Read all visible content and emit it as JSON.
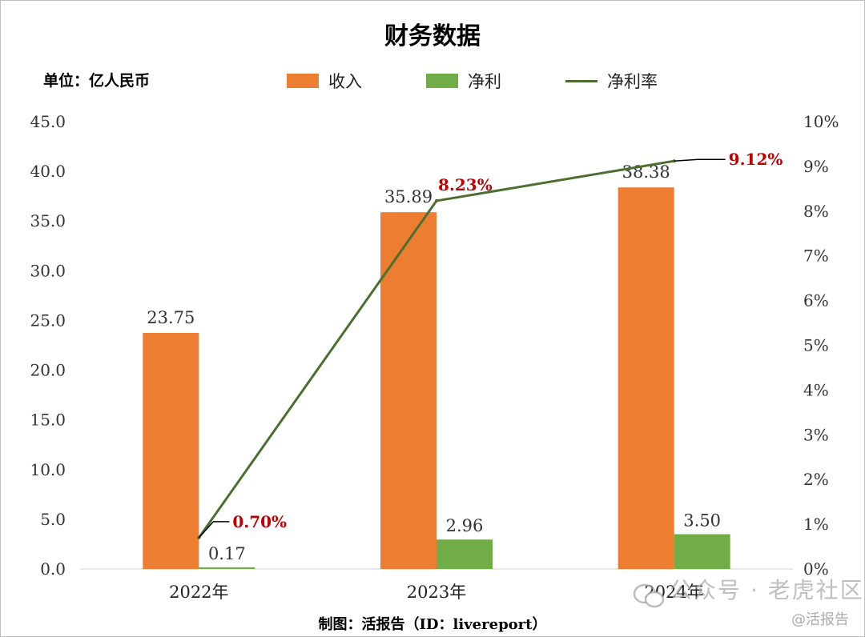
{
  "colors": {
    "revenue": "#ed7d31",
    "profit": "#70ad47",
    "margin_line": "#4a6f2e",
    "margin_label": "#c00000"
  },
  "header": {
    "title": "财务数据",
    "unit": "单位：亿人民币"
  },
  "legend": {
    "revenue": "收入",
    "profit": "净利",
    "margin": "净利率"
  },
  "footer": {
    "source": "制图：活报告（ID：livereport）"
  },
  "watermark": {
    "main": "公众号 · 老虎社区",
    "sub": "@活报告",
    "icon": "wechat-icon"
  },
  "chart_data": {
    "type": "bar",
    "title": "财务数据",
    "categories": [
      "2022年",
      "2023年",
      "2024年"
    ],
    "series": [
      {
        "name": "收入",
        "type": "bar",
        "axis": "left",
        "values": [
          23.75,
          35.89,
          38.38
        ],
        "labels": [
          "23.75",
          "35.89",
          "38.38"
        ]
      },
      {
        "name": "净利",
        "type": "bar",
        "axis": "left",
        "values": [
          0.17,
          2.96,
          3.5
        ],
        "labels": [
          "0.17",
          "2.96",
          "3.50"
        ]
      },
      {
        "name": "净利率",
        "type": "line",
        "axis": "right",
        "values": [
          0.7,
          8.23,
          9.12
        ],
        "labels": [
          "0.70%",
          "8.23%",
          "9.12%"
        ]
      }
    ],
    "y_left": {
      "min": 0,
      "max": 45,
      "step": 5,
      "ticks": [
        "0.0",
        "5.0",
        "10.0",
        "15.0",
        "20.0",
        "25.0",
        "30.0",
        "35.0",
        "40.0",
        "45.0"
      ]
    },
    "y_right": {
      "min": 0,
      "max": 10,
      "step": 1,
      "ticks": [
        "0%",
        "1%",
        "2%",
        "3%",
        "4%",
        "5%",
        "6%",
        "7%",
        "8%",
        "9%",
        "10%"
      ]
    },
    "grid": false,
    "legend_position": "top"
  }
}
